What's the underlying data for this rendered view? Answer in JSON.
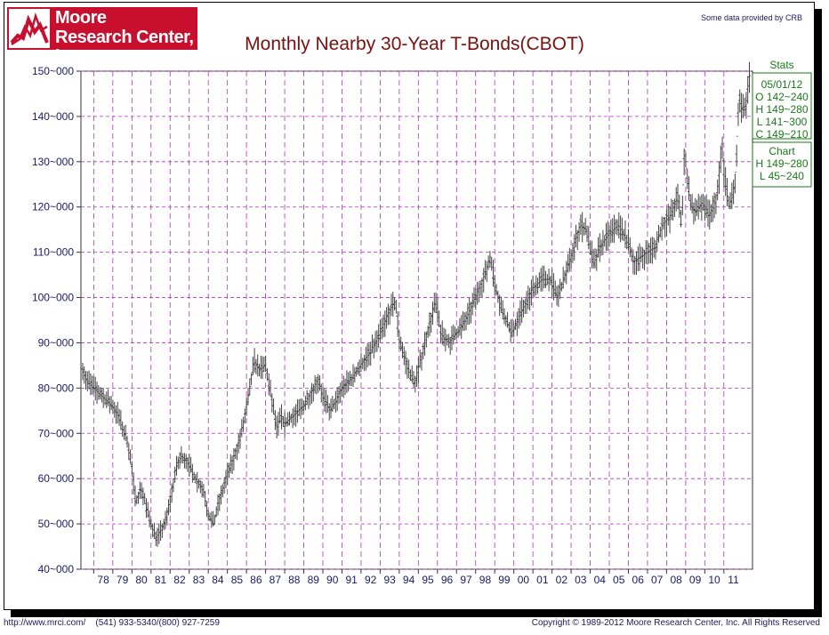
{
  "header": {
    "logo_line1": "Moore",
    "logo_line2": "Research Center, Inc.",
    "source_note": "Some data provided by CRB"
  },
  "footer": {
    "url": "http://www.mrci.com/",
    "phone": "(541) 933-5340/(800) 927-7259",
    "copyright": "Copyright © 1989-2012 Moore Research Center, Inc. All Rights Reserved"
  },
  "stats": {
    "heading": "Stats",
    "date": "05/01/12",
    "open": "O 142~240",
    "high": "H 149~280",
    "low": "L 141~300",
    "close": "C 149~210",
    "chart_heading": "Chart",
    "chart_high": "H 149~280",
    "chart_low": "L  45~240"
  },
  "colors": {
    "title": "#7a1010",
    "axis_text": "#1a1a6a",
    "grid": "#b030c0",
    "bars": "#444444",
    "stats": "#1a7a1a",
    "logo": "#c8102e"
  },
  "chart_data": {
    "type": "ohlc",
    "title": "Monthly Nearby 30-Year T-Bonds(CBOT)",
    "xlabel": "",
    "ylabel": "",
    "ylim": [
      40,
      150
    ],
    "y_ticks": [
      "40~000",
      "50~000",
      "60~000",
      "70~000",
      "80~000",
      "90~000",
      "100~000",
      "110~000",
      "120~000",
      "130~000",
      "140~000",
      "150~000"
    ],
    "y_tick_values": [
      40,
      50,
      60,
      70,
      80,
      90,
      100,
      110,
      120,
      130,
      140,
      150
    ],
    "x_ticks": [
      "78",
      "79",
      "80",
      "81",
      "82",
      "83",
      "84",
      "85",
      "86",
      "87",
      "88",
      "89",
      "90",
      "91",
      "92",
      "93",
      "94",
      "95",
      "96",
      "97",
      "98",
      "99",
      "00",
      "01",
      "02",
      "03",
      "04",
      "05",
      "06",
      "07",
      "08",
      "09",
      "10",
      "11"
    ],
    "x_range": [
      1977.33,
      2012.5
    ],
    "grid": true,
    "approx_monthly_path": {
      "x": [
        1977.4,
        1977.6,
        1978.0,
        1978.5,
        1979.0,
        1979.3,
        1979.6,
        1979.8,
        1980.0,
        1980.2,
        1980.5,
        1980.8,
        1981.0,
        1981.3,
        1981.6,
        1981.8,
        1982.0,
        1982.3,
        1982.6,
        1982.9,
        1983.2,
        1983.5,
        1983.8,
        1984.0,
        1984.3,
        1984.5,
        1984.8,
        1985.0,
        1985.3,
        1985.6,
        1985.9,
        1986.2,
        1986.4,
        1986.7,
        1987.0,
        1987.3,
        1987.6,
        1987.8,
        1988.0,
        1988.5,
        1989.0,
        1989.5,
        1989.8,
        1990.0,
        1990.4,
        1990.7,
        1991.0,
        1991.5,
        1992.0,
        1992.5,
        1993.0,
        1993.5,
        1993.8,
        1994.0,
        1994.4,
        1994.8,
        1995.0,
        1995.4,
        1995.9,
        1996.2,
        1996.6,
        1997.0,
        1997.5,
        1998.0,
        1998.5,
        1998.8,
        1999.0,
        1999.4,
        1999.9,
        2000.3,
        2000.8,
        2001.0,
        2001.5,
        2001.9,
        2002.3,
        2002.8,
        2003.2,
        2003.5,
        2003.8,
        2004.2,
        2004.5,
        2005.0,
        2005.5,
        2005.9,
        2006.3,
        2006.7,
        2007.0,
        2007.4,
        2007.8,
        2008.2,
        2008.6,
        2008.8,
        2008.95,
        2009.1,
        2009.3,
        2009.6,
        2009.9,
        2010.2,
        2010.5,
        2010.7,
        2010.9,
        2011.0,
        2011.3,
        2011.6,
        2011.8,
        2012.0,
        2012.2,
        2012.35
      ],
      "y": [
        85,
        82,
        80,
        78,
        76,
        74,
        70,
        68,
        62,
        55,
        58,
        53,
        50,
        47,
        49,
        51,
        55,
        62,
        65,
        64,
        61,
        59,
        57,
        52,
        50,
        54,
        58,
        61,
        64,
        68,
        73,
        80,
        86,
        84,
        85,
        78,
        71,
        74,
        72,
        74,
        76,
        80,
        82,
        78,
        75,
        77,
        80,
        82,
        85,
        88,
        92,
        97,
        99,
        91,
        85,
        81,
        84,
        91,
        99,
        92,
        90,
        92,
        95,
        100,
        105,
        109,
        103,
        97,
        92,
        96,
        100,
        102,
        104,
        104,
        100,
        106,
        112,
        116,
        115,
        107,
        111,
        114,
        116,
        113,
        108,
        109,
        110,
        111,
        116,
        118,
        122,
        116,
        133,
        126,
        120,
        119,
        121,
        118,
        120,
        124,
        134,
        128,
        120,
        125,
        144,
        141,
        143,
        149
      ]
    }
  }
}
